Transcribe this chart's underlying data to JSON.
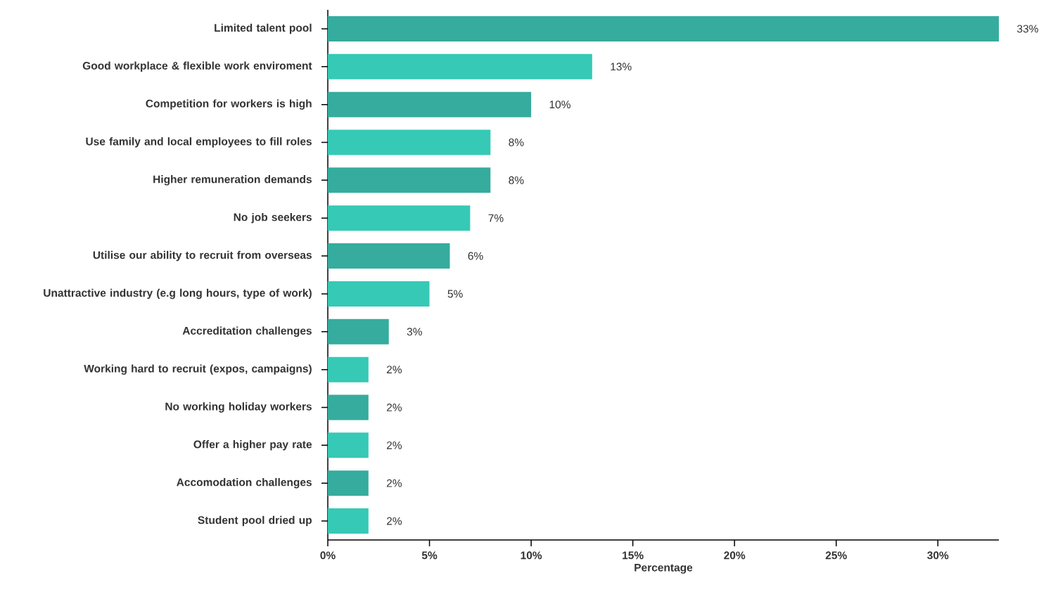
{
  "chart_data": {
    "type": "bar",
    "orientation": "horizontal",
    "xlabel": "Percentage",
    "categories": [
      "Limited talent pool",
      "Good workplace & flexible work enviroment",
      "Competition for workers is high",
      "Use family and local employees to fill roles",
      "Higher remuneration demands",
      "No job seekers",
      "Utilise our ability to recruit from overseas",
      "Unattractive industry (e.g long hours, type of work)",
      "Accreditation challenges",
      "Working hard to recruit (expos, campaigns)",
      "No working holiday workers",
      "Offer a higher pay rate",
      "Accomodation challenges",
      "Student pool dried up"
    ],
    "values": [
      33,
      13,
      10,
      8,
      8,
      7,
      6,
      5,
      3,
      2,
      2,
      2,
      2,
      2
    ],
    "value_labels": [
      "33%",
      "13%",
      "10%",
      "8%",
      "8%",
      "7%",
      "6%",
      "5%",
      "3%",
      "2%",
      "2%",
      "2%",
      "2%",
      "2%"
    ],
    "colors": [
      "#35ac9e",
      "#36c9b6",
      "#35ac9e",
      "#36c9b6",
      "#35ac9e",
      "#36c9b6",
      "#35ac9e",
      "#36c9b6",
      "#35ac9e",
      "#36c9b6",
      "#35ac9e",
      "#36c9b6",
      "#35ac9e",
      "#36c9b6"
    ],
    "xlim": [
      0,
      33
    ],
    "xticks": [
      {
        "value": 0,
        "label": "0%"
      },
      {
        "value": 5,
        "label": "5%"
      },
      {
        "value": 10,
        "label": "10%"
      },
      {
        "value": 15,
        "label": "15%"
      },
      {
        "value": 20,
        "label": "20%"
      },
      {
        "value": 25,
        "label": "25%"
      },
      {
        "value": 30,
        "label": "30%"
      }
    ],
    "grid": false
  }
}
